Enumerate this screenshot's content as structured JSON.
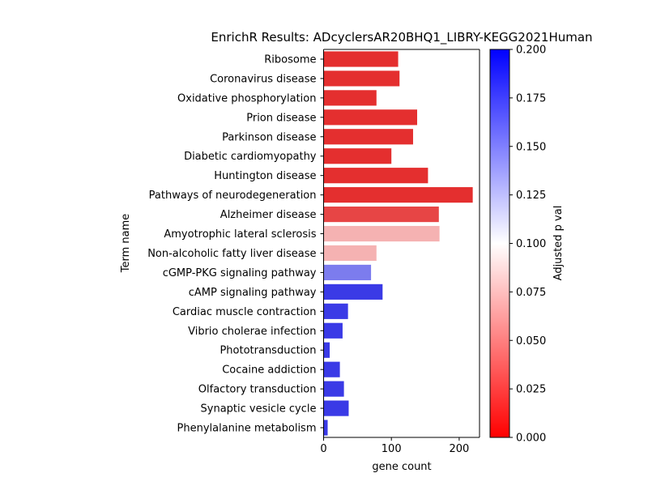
{
  "chart_data": {
    "type": "bar",
    "orientation": "horizontal",
    "title": "EnrichR Results: ADcyclersAR20BHQ1_LIBRY-KEGG2021Human",
    "xlabel": "gene count",
    "ylabel": "Term name",
    "xlim": [
      0,
      230
    ],
    "xticks": [
      0,
      100,
      200
    ],
    "grid": false,
    "categories": [
      "Ribosome",
      "Coronavirus disease",
      "Oxidative phosphorylation",
      "Prion disease",
      "Parkinson disease",
      "Diabetic cardiomyopathy",
      "Huntington disease",
      "Pathways of neurodegeneration",
      "Alzheimer disease",
      "Amyotrophic lateral sclerosis",
      "Non-alcoholic fatty liver disease",
      "cGMP-PKG signaling pathway",
      "cAMP signaling pathway",
      "Cardiac muscle contraction",
      "Vibrio cholerae infection",
      "Phototransduction",
      "Cocaine addiction",
      "Olfactory transduction",
      "Synaptic vesicle cycle",
      "Phenylalanine metabolism"
    ],
    "values": [
      110,
      112,
      78,
      138,
      132,
      100,
      154,
      220,
      170,
      171,
      78,
      70,
      87,
      36,
      28,
      9,
      24,
      30,
      37,
      6
    ],
    "color_values": [
      0.005,
      0.005,
      0.005,
      0.005,
      0.005,
      0.005,
      0.005,
      0.005,
      0.015,
      0.065,
      0.065,
      0.16,
      0.19,
      0.19,
      0.19,
      0.19,
      0.19,
      0.19,
      0.19,
      0.19
    ],
    "colorbar": {
      "label": "Adjusted p val",
      "range": [
        0.0,
        0.2
      ],
      "ticks": [
        "0.000",
        "0.025",
        "0.050",
        "0.075",
        "0.100",
        "0.125",
        "0.150",
        "0.175",
        "0.200"
      ],
      "colormap": [
        "#ff0000",
        "#ffffff",
        "#0000ff"
      ],
      "bar_color_low": "#e32424",
      "bar_color_high": "#2424e3"
    }
  }
}
